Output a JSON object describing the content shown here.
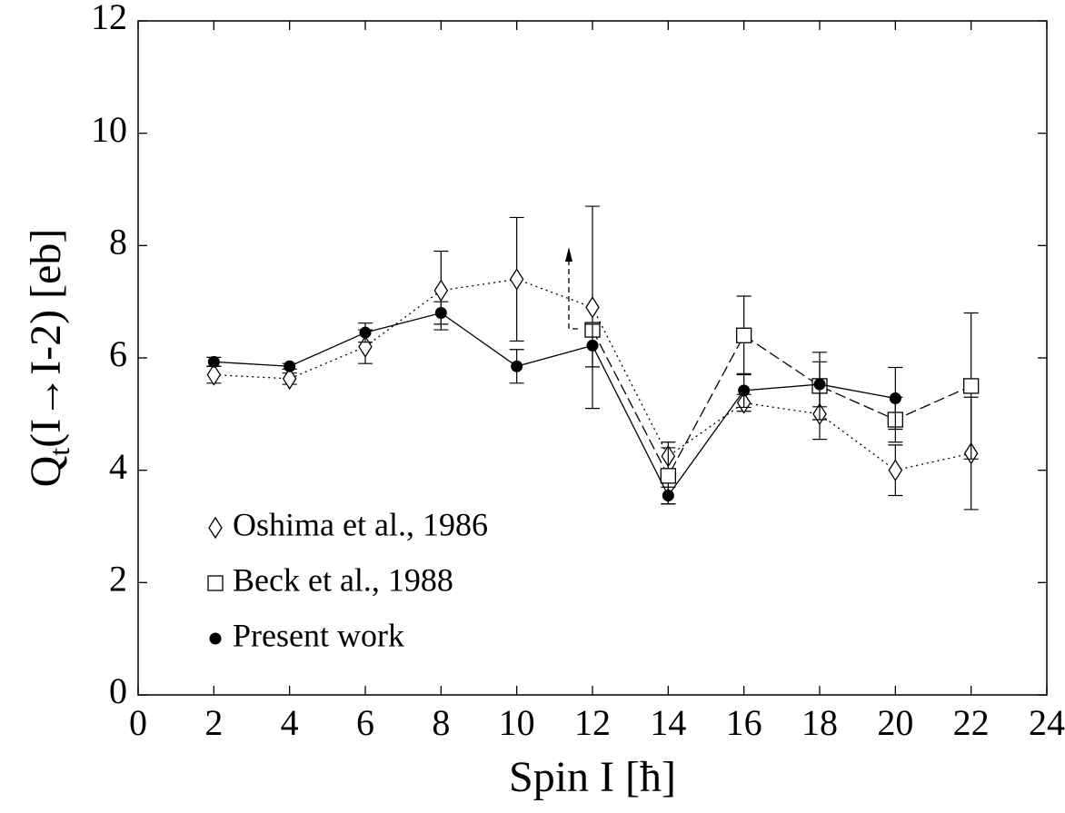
{
  "chart_data": {
    "type": "errorbar-line",
    "xlabel": "Spin I [ħ]",
    "ylabel": {
      "main": "Q",
      "sub": "t",
      "rest": "(I→I-2) [eb]"
    },
    "xlim": [
      0,
      24
    ],
    "xticks": [
      0,
      2,
      4,
      6,
      8,
      10,
      12,
      14,
      16,
      18,
      20,
      22,
      24
    ],
    "ylim": [
      0,
      12
    ],
    "yticks": [
      0,
      2,
      4,
      6,
      8,
      10,
      12
    ],
    "legend": "lower left",
    "series": [
      {
        "name": "Oshima et al., 1986",
        "marker": "diamond",
        "line": "dotted",
        "color": "#000000",
        "x": [
          2,
          4,
          6,
          8,
          10,
          12,
          14,
          16,
          18,
          20,
          22
        ],
        "values": [
          5.7,
          5.63,
          6.2,
          7.2,
          7.4,
          6.9,
          4.25,
          5.2,
          5.0,
          4.0,
          4.3
        ],
        "errors": [
          0.15,
          0.1,
          0.3,
          0.7,
          1.1,
          1.8,
          0.25,
          0.15,
          0.45,
          0.45,
          1.0
        ]
      },
      {
        "name": "Beck et al., 1988",
        "marker": "square",
        "line": "dashed",
        "color": "#000000",
        "x": [
          12,
          14,
          16,
          18,
          20,
          22
        ],
        "values": [
          6.5,
          3.9,
          6.4,
          5.5,
          4.9,
          5.5
        ],
        "errors": [
          0.1,
          0.5,
          0.7,
          0.6,
          0.4,
          1.3
        ]
      },
      {
        "name": "Present work",
        "marker": "circle",
        "line": "solid",
        "color": "#000000",
        "x": [
          2,
          4,
          6,
          8,
          10,
          12,
          14,
          16,
          18,
          20
        ],
        "values": [
          5.93,
          5.85,
          6.45,
          6.8,
          5.85,
          6.22,
          3.55,
          5.42,
          5.53,
          5.28
        ],
        "errors": [
          0.08,
          0.05,
          0.17,
          0.2,
          0.3,
          0.38,
          0.15,
          0.3,
          0.4,
          0.55
        ]
      }
    ]
  }
}
